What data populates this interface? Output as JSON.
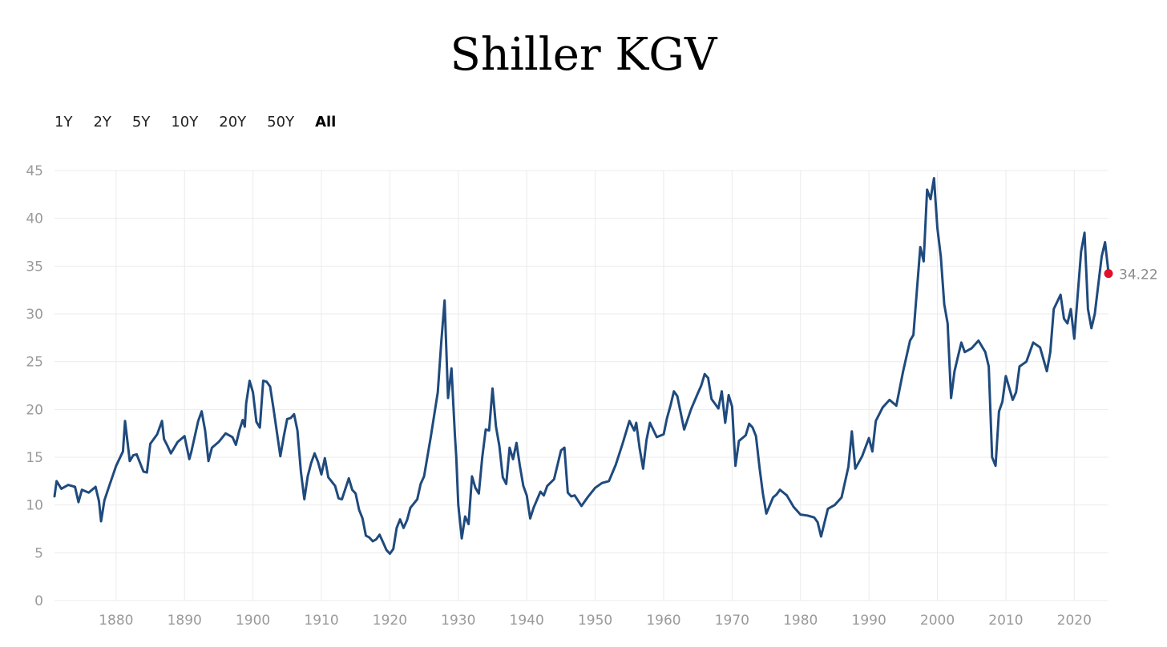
{
  "title": "Shiller KGV",
  "ranges": [
    {
      "label": "1Y",
      "active": false
    },
    {
      "label": "2Y",
      "active": false
    },
    {
      "label": "5Y",
      "active": false
    },
    {
      "label": "10Y",
      "active": false
    },
    {
      "label": "20Y",
      "active": false
    },
    {
      "label": "50Y",
      "active": false
    },
    {
      "label": "All",
      "active": true
    }
  ],
  "chart_data": {
    "type": "line",
    "title": "Shiller KGV",
    "xlabel": "",
    "ylabel": "",
    "xlim": [
      1871,
      2025
    ],
    "ylim": [
      0,
      45
    ],
    "x_ticks": [
      "1880",
      "1890",
      "1900",
      "1910",
      "1920",
      "1930",
      "1940",
      "1950",
      "1960",
      "1970",
      "1980",
      "1990",
      "2000",
      "2010",
      "2020"
    ],
    "y_ticks": [
      "0",
      "5",
      "10",
      "15",
      "20",
      "25",
      "30",
      "35",
      "40",
      "45"
    ],
    "grid": true,
    "line_color": "#1f4a7d",
    "marker_color": "#e0102b",
    "last_value_label": "34.22",
    "series": [
      {
        "x": [
          1871,
          1871.3,
          1872,
          1873,
          1874,
          1874.5,
          1875,
          1876,
          1877,
          1877.5,
          1877.8,
          1878.3,
          1879,
          1880,
          1881,
          1881.3,
          1882,
          1882.5,
          1883,
          1884,
          1884.5,
          1885,
          1886,
          1886.7,
          1887,
          1887.5,
          1888,
          1889,
          1890,
          1890.7,
          1891,
          1892,
          1892.5,
          1893,
          1893.5,
          1894,
          1895,
          1896,
          1897,
          1897.5,
          1898,
          1898.5,
          1898.8,
          1899,
          1899.5,
          1900,
          1900.5,
          1901,
          1901.5,
          1902,
          1902.5,
          1903,
          1903.5,
          1904,
          1904.5,
          1905,
          1905.5,
          1906,
          1906.5,
          1907,
          1907.5,
          1908,
          1908.5,
          1909,
          1909.5,
          1910,
          1910.5,
          1911,
          1912,
          1912.5,
          1913,
          1914,
          1914.5,
          1915,
          1915.5,
          1916,
          1916.5,
          1917,
          1917.5,
          1918,
          1918.5,
          1919,
          1919.5,
          1920,
          1920.5,
          1921,
          1921.5,
          1922,
          1922.5,
          1923,
          1924,
          1924.5,
          1925,
          1926,
          1927,
          1927.5,
          1928,
          1928.5,
          1929,
          1929.5,
          1929.7,
          1930,
          1930.5,
          1931,
          1931.5,
          1932,
          1932.5,
          1933,
          1933.5,
          1934,
          1934.5,
          1935,
          1935.5,
          1936,
          1936.5,
          1937,
          1937.5,
          1938,
          1938.5,
          1939,
          1939.5,
          1940,
          1940.5,
          1941,
          1942,
          1942.5,
          1943,
          1944,
          1945,
          1945.5,
          1946,
          1946.5,
          1947,
          1948,
          1949,
          1950,
          1951,
          1952,
          1953,
          1954,
          1955,
          1955.7,
          1956,
          1956.5,
          1957,
          1957.5,
          1958,
          1959,
          1960,
          1960.5,
          1961,
          1961.5,
          1962,
          1963,
          1964,
          1965,
          1965.5,
          1966,
          1966.5,
          1967,
          1968,
          1968.5,
          1969,
          1969.5,
          1970,
          1970.5,
          1971,
          1972,
          1972.5,
          1973,
          1973.5,
          1974,
          1974.5,
          1975,
          1976,
          1976.5,
          1977,
          1978,
          1979,
          1980,
          1981,
          1982,
          1982.5,
          1983,
          1984,
          1985,
          1986,
          1987,
          1987.5,
          1988,
          1989,
          1990,
          1990.5,
          1991,
          1992,
          1993,
          1994,
          1995,
          1996,
          1996.5,
          1997,
          1997.5,
          1998,
          1998.5,
          1999,
          1999.5,
          2000,
          2000.5,
          2001,
          2001.5,
          2002,
          2002.5,
          2003,
          2003.5,
          2004,
          2005,
          2006,
          2007,
          2007.5,
          2008,
          2008.5,
          2009,
          2009.5,
          2010,
          2011,
          2011.5,
          2012,
          2013,
          2014,
          2015,
          2016,
          2016.5,
          2017,
          2018,
          2018.5,
          2019,
          2019.5,
          2020,
          2020.5,
          2021,
          2021.5,
          2022,
          2022.5,
          2023,
          2023.5,
          2024,
          2024.5,
          2024.9,
          2025
        ],
        "y": [
          10.9,
          12.5,
          11.7,
          12.1,
          11.9,
          10.3,
          11.6,
          11.3,
          11.9,
          10.4,
          8.3,
          10.5,
          12.0,
          14.1,
          15.6,
          18.8,
          14.6,
          15.2,
          15.3,
          13.5,
          13.4,
          16.4,
          17.4,
          18.8,
          16.9,
          16.2,
          15.4,
          16.6,
          17.2,
          14.8,
          15.6,
          18.8,
          19.8,
          17.8,
          14.6,
          16.0,
          16.6,
          17.5,
          17.1,
          16.3,
          17.8,
          18.9,
          18.2,
          20.6,
          23.0,
          21.8,
          18.7,
          18.1,
          23.0,
          22.9,
          22.4,
          20.1,
          17.6,
          15.1,
          17.2,
          19.0,
          19.1,
          19.5,
          17.8,
          13.5,
          10.6,
          13.0,
          14.4,
          15.4,
          14.5,
          13.2,
          14.9,
          12.9,
          12.0,
          10.7,
          10.6,
          12.8,
          11.6,
          11.2,
          9.5,
          8.6,
          6.8,
          6.6,
          6.2,
          6.4,
          6.9,
          6.1,
          5.3,
          4.9,
          5.4,
          7.6,
          8.5,
          7.6,
          8.4,
          9.7,
          10.6,
          12.2,
          13.0,
          17.2,
          21.8,
          27.0,
          31.4,
          21.2,
          24.3,
          17.4,
          15.1,
          10.0,
          6.5,
          8.8,
          8.0,
          13.0,
          11.8,
          11.2,
          15.0,
          17.9,
          17.8,
          22.2,
          18.2,
          16.2,
          12.9,
          12.2,
          16.0,
          14.8,
          16.5,
          14.1,
          12.0,
          11.0,
          8.6,
          9.7,
          11.4,
          11.0,
          12.0,
          12.7,
          15.7,
          16.0,
          11.3,
          10.9,
          11.0,
          9.9,
          10.9,
          11.8,
          12.3,
          12.5,
          14.2,
          16.4,
          18.8,
          17.8,
          18.6,
          15.9,
          13.8,
          16.8,
          18.6,
          17.1,
          17.4,
          19.1,
          20.4,
          21.9,
          21.4,
          17.9,
          20.0,
          21.7,
          22.5,
          23.7,
          23.3,
          21.1,
          20.1,
          21.9,
          18.6,
          21.5,
          20.3,
          14.1,
          16.7,
          17.3,
          18.5,
          18.1,
          17.2,
          14.0,
          11.2,
          9.1,
          10.8,
          11.1,
          11.6,
          11.0,
          9.8,
          9.0,
          8.9,
          8.7,
          8.2,
          6.7,
          9.6,
          10.0,
          10.8,
          14.0,
          17.7,
          13.8,
          15.1,
          17.0,
          15.6,
          18.8,
          20.2,
          21.0,
          20.4,
          24.0,
          27.2,
          27.8,
          32.4,
          37.0,
          35.5,
          43.0,
          42.0,
          44.2,
          39.0,
          36.0,
          31.0,
          29.0,
          21.2,
          24.0,
          25.5,
          27.0,
          26.0,
          26.4,
          27.2,
          26.0,
          24.5,
          15.0,
          14.1,
          19.8,
          20.8,
          23.5,
          21.0,
          21.8,
          24.5,
          25.0,
          27.0,
          26.5,
          24.0,
          26.0,
          30.5,
          32.0,
          29.5,
          29.0,
          30.5,
          27.4,
          32.0,
          36.5,
          38.5,
          30.5,
          28.5,
          30.0,
          33.0,
          36.0,
          37.5,
          35.0,
          34.22
        ]
      }
    ]
  }
}
